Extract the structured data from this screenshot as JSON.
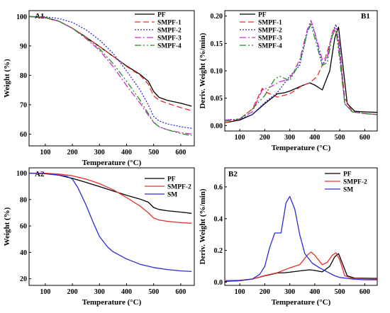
{
  "chart_data": [
    {
      "id": "A1",
      "type": "line",
      "panel_label": "A1",
      "xlabel": "Temperature (°C)",
      "ylabel": "Weight (%)",
      "xlim": [
        40,
        650
      ],
      "ylim": [
        56,
        102
      ],
      "xticks": [
        100,
        200,
        300,
        400,
        500,
        600
      ],
      "yticks": [
        60,
        70,
        80,
        90,
        100
      ],
      "legend": "top-right",
      "series": [
        {
          "name": "PF",
          "color": "#000000",
          "dash": "solid",
          "x": [
            40,
            100,
            150,
            200,
            250,
            300,
            350,
            400,
            450,
            480,
            500,
            520,
            550,
            600,
            640
          ],
          "y": [
            100,
            99.6,
            98.4,
            96,
            93,
            89.8,
            86.5,
            83.2,
            80.3,
            78,
            74.5,
            72.5,
            71.5,
            70.5,
            69.5
          ]
        },
        {
          "name": "SMPF-1",
          "color": "#e8302a",
          "dash": "8,4",
          "x": [
            40,
            100,
            150,
            200,
            250,
            300,
            350,
            400,
            450,
            480,
            500,
            520,
            550,
            600,
            640
          ],
          "y": [
            100,
            99.6,
            98.4,
            96,
            93,
            89.8,
            86.5,
            83,
            80,
            77,
            73,
            71.5,
            70.5,
            69,
            68
          ]
        },
        {
          "name": "SMPF-2",
          "color": "#2b2bd6",
          "dash": "2,2",
          "x": [
            40,
            100,
            150,
            200,
            250,
            300,
            350,
            400,
            450,
            480,
            500,
            520,
            550,
            600,
            640
          ],
          "y": [
            100,
            99.9,
            99.3,
            98,
            95.5,
            92,
            87.5,
            81.5,
            75,
            70,
            66,
            64.5,
            63.5,
            62.5,
            62
          ]
        },
        {
          "name": "SMPF-3",
          "color": "#d42ad4",
          "dash": "9,3,2,3",
          "x": [
            40,
            100,
            150,
            200,
            250,
            300,
            350,
            400,
            450,
            480,
            500,
            520,
            550,
            600,
            640
          ],
          "y": [
            100,
            99.7,
            98.4,
            96,
            92.5,
            88.5,
            83,
            76.5,
            70.5,
            66.5,
            64,
            62.5,
            61.5,
            60.5,
            60
          ]
        },
        {
          "name": "SMPF-4",
          "color": "#1f8f1f",
          "dash": "9,3,2,3,2,3",
          "x": [
            40,
            100,
            150,
            200,
            250,
            300,
            350,
            400,
            450,
            480,
            500,
            520,
            550,
            600,
            640
          ],
          "y": [
            100,
            99.7,
            98.4,
            96,
            92.8,
            89,
            84,
            78,
            71.5,
            67,
            64,
            62.5,
            61.5,
            60.2,
            59.5
          ]
        }
      ]
    },
    {
      "id": "B1",
      "type": "line",
      "panel_label": "B1",
      "xlabel": "Temperature (°C)",
      "ylabel": "Deriv. Weight (%/min)",
      "xlim": [
        40,
        650
      ],
      "ylim": [
        -0.01,
        0.21
      ],
      "xticks": [
        100,
        200,
        300,
        400,
        500,
        600
      ],
      "yticks": [
        0.0,
        0.05,
        0.1,
        0.15,
        0.2
      ],
      "ytick_labels": [
        "0.00",
        "0.05",
        "0.10",
        "0.15",
        "0.20"
      ],
      "legend": "top-left",
      "series": [
        {
          "name": "PF",
          "color": "#000000",
          "dash": "solid",
          "x": [
            40,
            100,
            150,
            200,
            250,
            280,
            300,
            350,
            380,
            400,
            430,
            460,
            480,
            495,
            510,
            530,
            560,
            600,
            650
          ],
          "y": [
            0.005,
            0.01,
            0.02,
            0.04,
            0.058,
            0.06,
            0.063,
            0.073,
            0.078,
            0.074,
            0.065,
            0.1,
            0.16,
            0.18,
            0.12,
            0.04,
            0.026,
            0.025,
            0.024
          ]
        },
        {
          "name": "SMPF-1",
          "color": "#e8302a",
          "dash": "8,4",
          "x": [
            40,
            100,
            150,
            190,
            210,
            250,
            300,
            350,
            380,
            410,
            440,
            460,
            480,
            495,
            520,
            550,
            600,
            650
          ],
          "y": [
            0.005,
            0.012,
            0.03,
            0.068,
            0.06,
            0.052,
            0.058,
            0.073,
            0.078,
            0.09,
            0.12,
            0.15,
            0.175,
            0.16,
            0.05,
            0.025,
            0.022,
            0.02
          ]
        },
        {
          "name": "SMPF-2",
          "color": "#2b2bd6",
          "dash": "2,2",
          "x": [
            40,
            100,
            150,
            200,
            250,
            300,
            340,
            370,
            385,
            400,
            430,
            450,
            470,
            485,
            500,
            520,
            550,
            600,
            650
          ],
          "y": [
            0.01,
            0.012,
            0.02,
            0.042,
            0.06,
            0.09,
            0.11,
            0.17,
            0.19,
            0.17,
            0.11,
            0.125,
            0.17,
            0.185,
            0.14,
            0.04,
            0.025,
            0.022,
            0.02
          ]
        },
        {
          "name": "SMPF-3",
          "color": "#d42ad4",
          "dash": "9,3,2,3",
          "x": [
            40,
            100,
            150,
            190,
            220,
            260,
            300,
            340,
            370,
            385,
            400,
            430,
            450,
            470,
            485,
            500,
            520,
            550,
            600,
            650
          ],
          "y": [
            0.01,
            0.012,
            0.025,
            0.065,
            0.07,
            0.08,
            0.085,
            0.12,
            0.175,
            0.192,
            0.17,
            0.12,
            0.125,
            0.17,
            0.18,
            0.13,
            0.04,
            0.025,
            0.022,
            0.02
          ]
        },
        {
          "name": "SMPF-4",
          "color": "#1f8f1f",
          "dash": "9,3,2,3,2,3",
          "x": [
            40,
            100,
            150,
            200,
            240,
            260,
            300,
            340,
            370,
            385,
            400,
            430,
            450,
            470,
            485,
            500,
            520,
            550,
            600,
            650
          ],
          "y": [
            0.008,
            0.012,
            0.03,
            0.055,
            0.085,
            0.09,
            0.082,
            0.115,
            0.17,
            0.185,
            0.16,
            0.11,
            0.115,
            0.165,
            0.175,
            0.12,
            0.04,
            0.025,
            0.022,
            0.02
          ]
        }
      ]
    },
    {
      "id": "A2",
      "type": "line",
      "panel_label": "A2",
      "xlabel": "Temperature (°C)",
      "ylabel": "Weight (%)",
      "xlim": [
        40,
        650
      ],
      "ylim": [
        15,
        104
      ],
      "xticks": [
        100,
        200,
        300,
        400,
        500,
        600
      ],
      "yticks": [
        20,
        40,
        60,
        80,
        100
      ],
      "legend": "top-right",
      "series": [
        {
          "name": "PF",
          "color": "#000000",
          "dash": "solid",
          "x": [
            40,
            100,
            150,
            200,
            250,
            300,
            350,
            400,
            450,
            480,
            500,
            520,
            550,
            600,
            640
          ],
          "y": [
            100,
            99.6,
            98.4,
            96,
            93,
            89.8,
            86.5,
            83.2,
            80.3,
            78,
            74,
            72.5,
            71.5,
            70.5,
            69.5
          ]
        },
        {
          "name": "SMPF-2",
          "color": "#e8302a",
          "dash": "solid",
          "x": [
            40,
            100,
            150,
            200,
            250,
            300,
            350,
            400,
            450,
            480,
            500,
            520,
            550,
            600,
            640
          ],
          "y": [
            100,
            99.9,
            99.3,
            98,
            95.5,
            92,
            87.5,
            81.5,
            75,
            70,
            66,
            64.5,
            63.5,
            62.5,
            62
          ]
        },
        {
          "name": "SM",
          "color": "#2b2bd6",
          "dash": "solid",
          "x": [
            40,
            100,
            150,
            180,
            200,
            220,
            250,
            280,
            300,
            330,
            350,
            400,
            450,
            500,
            550,
            600,
            640
          ],
          "y": [
            100,
            99.5,
            98.5,
            97.5,
            95.5,
            89,
            76,
            61,
            52,
            44,
            40.5,
            35,
            31,
            28.5,
            27,
            26,
            25.5
          ]
        }
      ]
    },
    {
      "id": "B2",
      "type": "line",
      "panel_label": "B2",
      "xlabel": "Temperature (°C)",
      "ylabel": "Deriv. Weight (%/min)",
      "xlim": [
        40,
        650
      ],
      "ylim": [
        -0.02,
        0.72
      ],
      "xticks": [
        100,
        200,
        300,
        400,
        500,
        600
      ],
      "yticks": [
        0.0,
        0.2,
        0.4,
        0.6
      ],
      "ytick_labels": [
        "0.0",
        "0.2",
        "0.4",
        "0.6"
      ],
      "legend": "top-right",
      "series": [
        {
          "name": "PF",
          "color": "#000000",
          "dash": "solid",
          "x": [
            40,
            100,
            150,
            200,
            250,
            280,
            300,
            350,
            380,
            400,
            430,
            460,
            480,
            495,
            510,
            530,
            560,
            600,
            650
          ],
          "y": [
            0.005,
            0.01,
            0.02,
            0.04,
            0.058,
            0.06,
            0.063,
            0.073,
            0.078,
            0.074,
            0.065,
            0.1,
            0.16,
            0.18,
            0.12,
            0.04,
            0.026,
            0.025,
            0.024
          ]
        },
        {
          "name": "SMPF-2",
          "color": "#e8302a",
          "dash": "solid",
          "x": [
            40,
            100,
            150,
            200,
            250,
            300,
            340,
            370,
            385,
            400,
            430,
            450,
            470,
            485,
            500,
            520,
            550,
            600,
            650
          ],
          "y": [
            0.01,
            0.012,
            0.02,
            0.042,
            0.06,
            0.09,
            0.11,
            0.17,
            0.19,
            0.17,
            0.11,
            0.125,
            0.17,
            0.185,
            0.14,
            0.04,
            0.025,
            0.022,
            0.02
          ]
        },
        {
          "name": "SM",
          "color": "#2b2bd6",
          "dash": "solid",
          "x": [
            40,
            100,
            150,
            180,
            200,
            220,
            240,
            265,
            285,
            300,
            320,
            340,
            360,
            390,
            420,
            450,
            480,
            500,
            550,
            600,
            650
          ],
          "y": [
            0.005,
            0.01,
            0.02,
            0.05,
            0.1,
            0.22,
            0.31,
            0.31,
            0.5,
            0.54,
            0.46,
            0.3,
            0.18,
            0.12,
            0.09,
            0.065,
            0.04,
            0.03,
            0.02,
            0.015,
            0.015
          ]
        }
      ]
    }
  ]
}
